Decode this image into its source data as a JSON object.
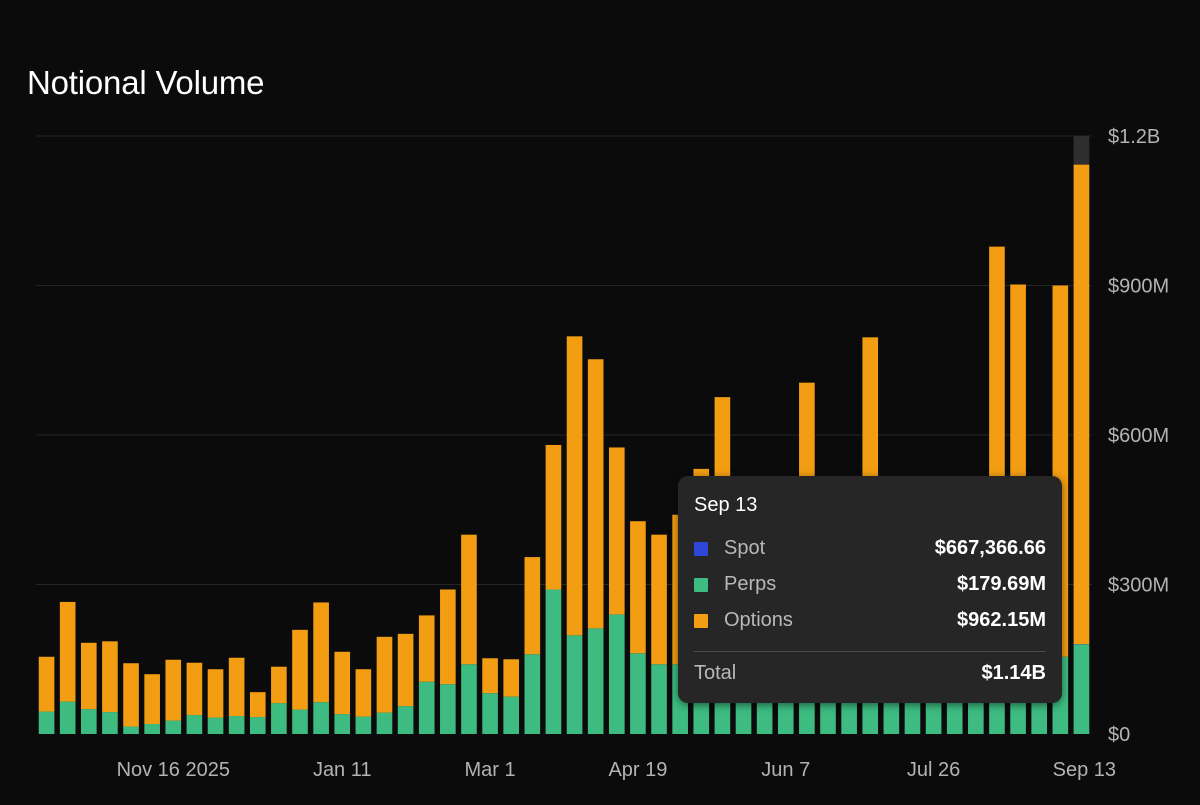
{
  "title": "Notional Volume",
  "colors": {
    "spot": "#2f47d8",
    "perps": "#3dbb80",
    "options": "#f29d12",
    "grid": "#262626",
    "hover_column": "#2e2e2e"
  },
  "chart_data": {
    "type": "bar",
    "stacked": true,
    "xlabel": "",
    "ylabel": "",
    "y_axis_position": "right",
    "ylim": [
      0,
      1200000000
    ],
    "y_ticks": [
      0,
      300000000,
      600000000,
      900000000,
      1200000000
    ],
    "y_tick_labels": [
      "$0",
      "$300M",
      "$600M",
      "$900M",
      "$1.2B"
    ],
    "x_tick_labels": [
      {
        "label": "Nov 16 2025",
        "index": 6
      },
      {
        "label": "Jan 11",
        "index": 14
      },
      {
        "label": "Mar 1",
        "index": 21
      },
      {
        "label": "Apr 19",
        "index": 28
      },
      {
        "label": "Jun 7",
        "index": 35
      },
      {
        "label": "Jul 26",
        "index": 42
      },
      {
        "label": "Sep 13",
        "index": 49
      }
    ],
    "grid": true,
    "hovered_index": 49,
    "series": [
      {
        "name": "Spot",
        "color": "#2f47d8",
        "values": [
          0,
          0,
          0,
          0,
          0,
          0,
          0,
          0,
          0,
          0,
          0,
          0,
          0,
          0,
          0,
          0,
          0,
          0,
          0,
          0,
          0,
          0,
          0,
          0,
          0,
          0,
          0,
          0,
          0,
          0,
          0,
          0,
          0,
          0,
          0,
          0,
          0,
          0,
          0,
          0,
          0,
          2000000,
          3000000,
          0,
          0,
          0,
          0,
          0,
          0,
          667366.66
        ]
      },
      {
        "name": "Perps",
        "color": "#3dbb80",
        "values": [
          45000000,
          65000000,
          50000000,
          44000000,
          15000000,
          20000000,
          27000000,
          38000000,
          33000000,
          36000000,
          34000000,
          62000000,
          49000000,
          64000000,
          40000000,
          35000000,
          43000000,
          56000000,
          105000000,
          100000000,
          140000000,
          82000000,
          75000000,
          160000000,
          290000000,
          198000000,
          212000000,
          240000000,
          162000000,
          140000000,
          140000000,
          162000000,
          126000000,
          118000000,
          120000000,
          98000000,
          115000000,
          110000000,
          126000000,
          106000000,
          108000000,
          96000000,
          92000000,
          96000000,
          94000000,
          98000000,
          112000000,
          110000000,
          155000000,
          179690000
        ]
      },
      {
        "name": "Options",
        "color": "#f29d12",
        "values": [
          110000000,
          200000000,
          133000000,
          142000000,
          127000000,
          100000000,
          122000000,
          105000000,
          97000000,
          117000000,
          50000000,
          73000000,
          160000000,
          200000000,
          125000000,
          95000000,
          152000000,
          145000000,
          133000000,
          190000000,
          260000000,
          70000000,
          75000000,
          195000000,
          290000000,
          600000000,
          540000000,
          335000000,
          265000000,
          260000000,
          300000000,
          370000000,
          550000000,
          350000000,
          330000000,
          400000000,
          590000000,
          300000000,
          330000000,
          690000000,
          290000000,
          310000000,
          330000000,
          280000000,
          300000000,
          880000000,
          790000000,
          300000000,
          745000000,
          962150000
        ]
      }
    ]
  },
  "tooltip": {
    "date": "Sep 13",
    "rows": [
      {
        "label": "Spot",
        "value": "$667,366.66",
        "color": "#2f47d8"
      },
      {
        "label": "Perps",
        "value": "$179.69M",
        "color": "#3dbb80"
      },
      {
        "label": "Options",
        "value": "$962.15M",
        "color": "#f29d12"
      }
    ],
    "total_label": "Total",
    "total_value": "$1.14B"
  }
}
